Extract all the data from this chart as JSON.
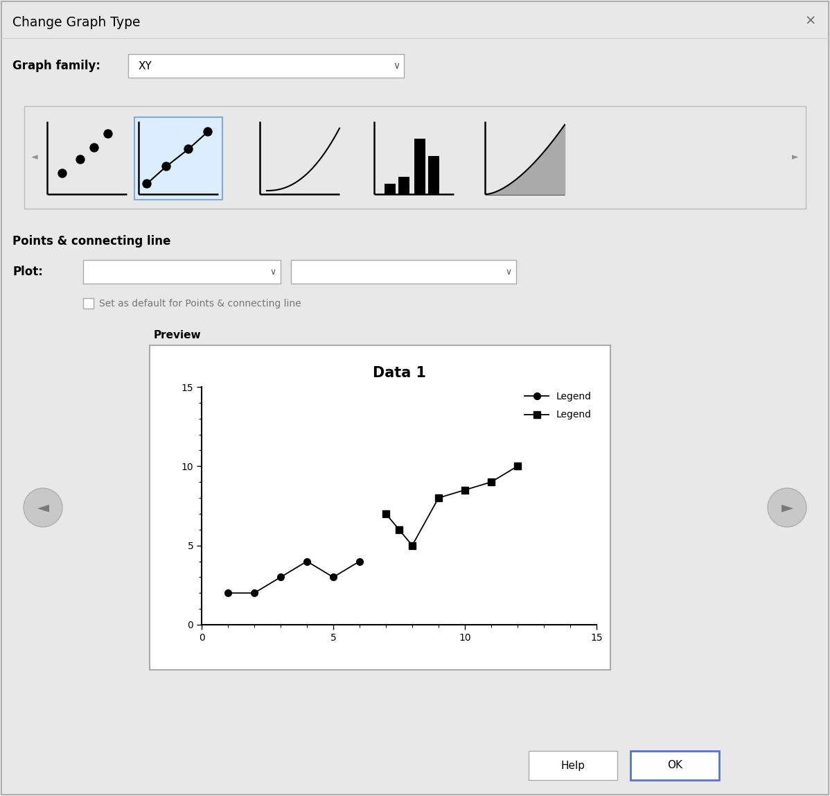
{
  "bg_color": "#e8e8e8",
  "dialog_title": "Change Graph Type",
  "graph_family_label": "Graph family:",
  "graph_family_value": "XY",
  "points_connecting_line_label": "Points & connecting line",
  "plot_label": "Plot:",
  "checkbox_label": "Set as default for Points & connecting line",
  "preview_label": "Preview",
  "chart_title": "Data 1",
  "series1_x": [
    1,
    2,
    3,
    4,
    5,
    6
  ],
  "series1_y": [
    2,
    2,
    3,
    4,
    3,
    4
  ],
  "series2_x": [
    7,
    7.5,
    8,
    9,
    10,
    11,
    12
  ],
  "series2_y": [
    7,
    6,
    5,
    8,
    8.5,
    9,
    10
  ],
  "xlim": [
    0,
    15
  ],
  "ylim": [
    0,
    15
  ],
  "legend1_label": "Legend",
  "legend2_label": "Legend",
  "help_button": "Help",
  "ok_button": "OK",
  "close_x": "×",
  "white": "#ffffff",
  "black": "#000000",
  "light_blue_selected": "#daeeff",
  "dialog_border": "#b0b0b0",
  "arrow_color": "#909090",
  "thumb_border": "#999999"
}
